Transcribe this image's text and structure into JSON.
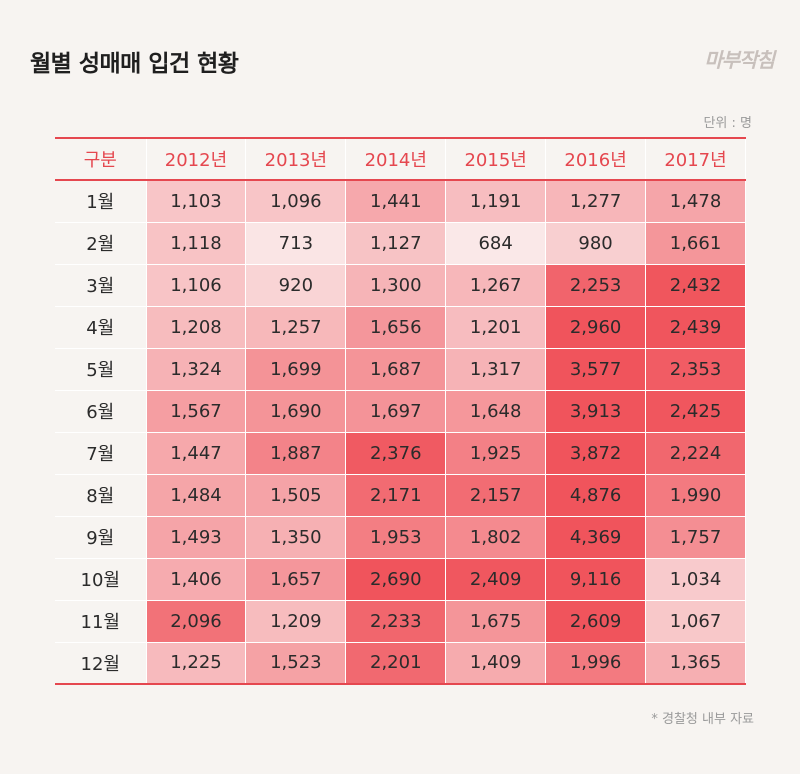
{
  "title": "월별 성매매 입건 현황",
  "logo": "마부작침",
  "unit": "단위 : 명",
  "source": "* 경찰청 내부 자료",
  "colors": {
    "accent": "#e5474f",
    "scale_low": "#fae8e8",
    "scale_high": "#f0545c"
  },
  "chart_data": {
    "type": "heatmap",
    "header_label": "구분",
    "columns": [
      "2012년",
      "2013년",
      "2014년",
      "2015년",
      "2016년",
      "2017년"
    ],
    "rows": [
      "1월",
      "2월",
      "3월",
      "4월",
      "5월",
      "6월",
      "7월",
      "8월",
      "9월",
      "10월",
      "11월",
      "12월"
    ],
    "values": [
      [
        "1,103",
        "1,096",
        "1,441",
        "1,191",
        "1,277",
        "1,478"
      ],
      [
        "1,118",
        "713",
        "1,127",
        "684",
        "980",
        "1,661"
      ],
      [
        "1,106",
        "920",
        "1,300",
        "1,267",
        "2,253",
        "2,432"
      ],
      [
        "1,208",
        "1,257",
        "1,656",
        "1,201",
        "2,960",
        "2,439"
      ],
      [
        "1,324",
        "1,699",
        "1,687",
        "1,317",
        "3,577",
        "2,353"
      ],
      [
        "1,567",
        "1,690",
        "1,697",
        "1,648",
        "3,913",
        "2,425"
      ],
      [
        "1,447",
        "1,887",
        "2,376",
        "1,925",
        "3,872",
        "2,224"
      ],
      [
        "1,484",
        "1,505",
        "2,171",
        "2,157",
        "4,876",
        "1,990"
      ],
      [
        "1,493",
        "1,350",
        "1,953",
        "1,802",
        "4,369",
        "1,757"
      ],
      [
        "1,406",
        "1,657",
        "2,690",
        "2,409",
        "9,116",
        "1,034"
      ],
      [
        "2,096",
        "1,209",
        "2,233",
        "1,675",
        "2,609",
        "1,067"
      ],
      [
        "1,225",
        "1,523",
        "2,201",
        "1,409",
        "1,996",
        "1,365"
      ]
    ]
  }
}
